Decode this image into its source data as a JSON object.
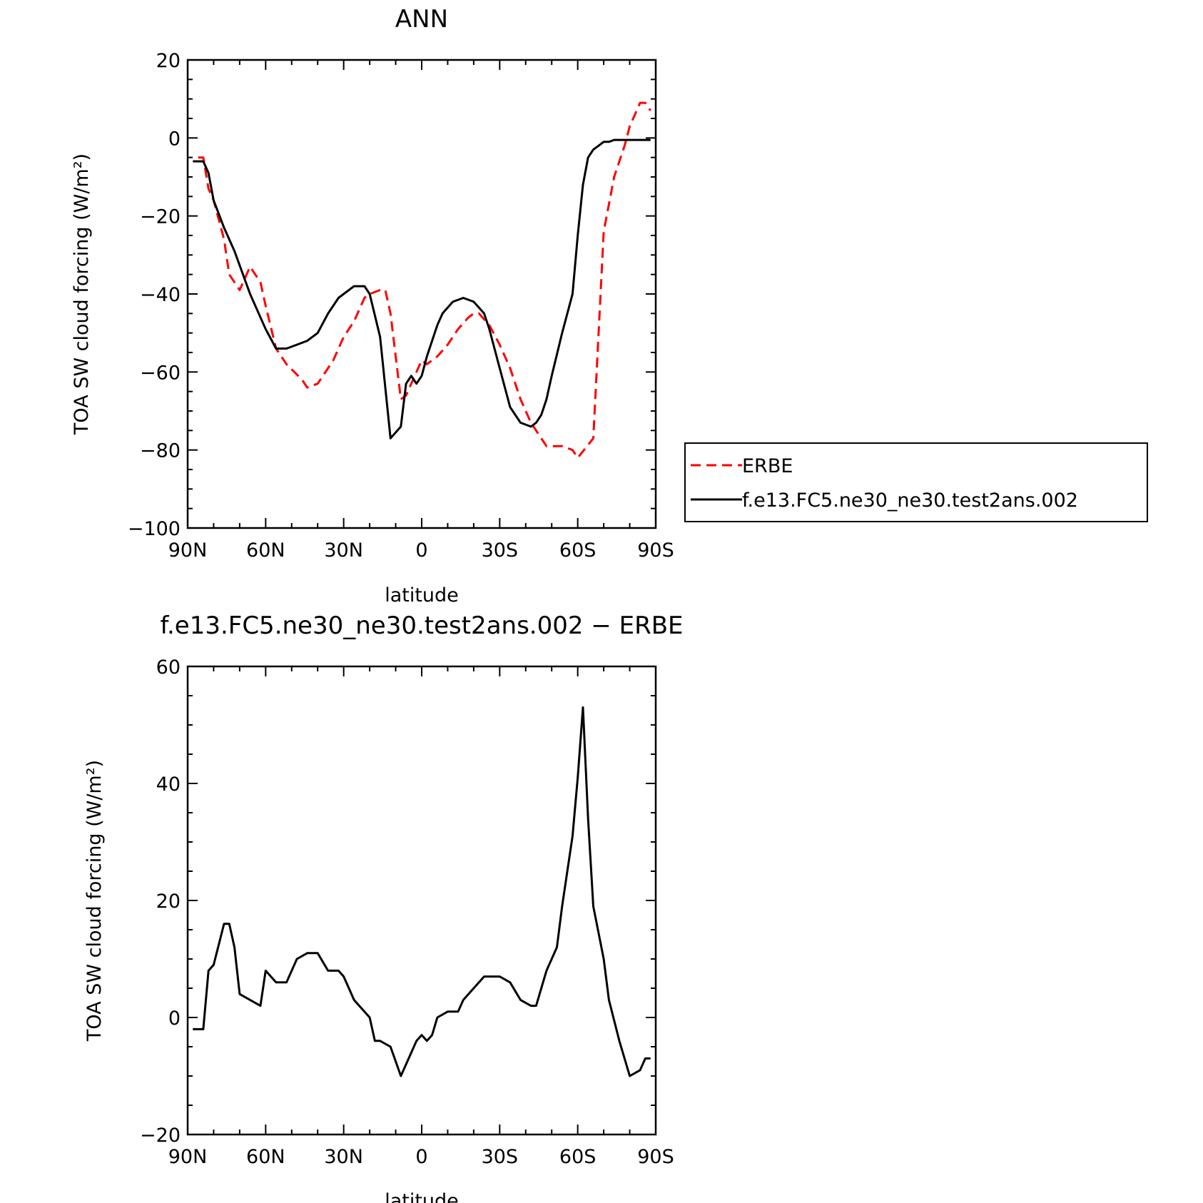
{
  "chart_data": [
    {
      "type": "line",
      "title": "ANN",
      "xlabel": "latitude",
      "ylabel": "TOA SW cloud forcing (W/m²)",
      "xlim": [
        90,
        -90
      ],
      "ylim": [
        -100,
        20
      ],
      "x_ticks": [
        90,
        60,
        30,
        0,
        -30,
        -60,
        -90
      ],
      "x_tick_labels": [
        "90N",
        "60N",
        "30N",
        "0",
        "30S",
        "60S",
        "90S"
      ],
      "y_ticks": [
        -100,
        -80,
        -60,
        -40,
        -20,
        0,
        20
      ],
      "y_tick_labels": [
        "−100",
        "−80",
        "−60",
        "−40",
        "−20",
        "0",
        "20"
      ],
      "legend_position": "right",
      "series": [
        {
          "name": "ERBE",
          "color": "#ff0000",
          "dash": "dashed",
          "x": [
            86,
            84,
            82,
            80,
            76,
            74,
            72,
            70,
            66,
            62,
            60,
            56,
            52,
            46,
            44,
            40,
            34,
            30,
            26,
            22,
            20,
            16,
            14,
            12,
            8,
            6,
            2,
            0,
            -2,
            -6,
            -10,
            -14,
            -18,
            -20,
            -22,
            -26,
            -30,
            -34,
            -38,
            -42,
            -46,
            -48,
            -50,
            -54,
            -58,
            -60,
            -66,
            -70,
            -74,
            -78,
            -80,
            -84,
            -86,
            -88
          ],
          "y": [
            -5,
            -5,
            -13,
            -16,
            -26,
            -35,
            -37,
            -39,
            -33,
            -37,
            -43,
            -54,
            -58,
            -62,
            -64,
            -63,
            -57,
            -51,
            -47,
            -41,
            -40,
            -39,
            -39,
            -45,
            -67,
            -66,
            -60,
            -57,
            -58,
            -56,
            -53,
            -49,
            -46,
            -45,
            -45,
            -48,
            -53,
            -59,
            -67,
            -73,
            -77,
            -79,
            -79,
            -79,
            -80,
            -82,
            -77,
            -24,
            -10,
            -2,
            3,
            9,
            9,
            7
          ]
        },
        {
          "name": "f.e13.FC5.ne30_ne30.test2ans.002",
          "color": "#000000",
          "dash": "solid",
          "x": [
            88,
            84,
            82,
            80,
            76,
            72,
            66,
            60,
            56,
            52,
            48,
            44,
            40,
            36,
            32,
            30,
            26,
            24,
            22,
            20,
            16,
            12,
            8,
            6,
            4,
            2,
            0,
            -2,
            -4,
            -6,
            -8,
            -12,
            -16,
            -20,
            -24,
            -26,
            -30,
            -34,
            -38,
            -42,
            -44,
            -46,
            -48,
            -50,
            -54,
            -58,
            -60,
            -62,
            -64,
            -66,
            -68,
            -70,
            -72,
            -74,
            -76,
            -80,
            -84,
            -88
          ],
          "y": [
            -6,
            -6,
            -9,
            -16,
            -23,
            -29,
            -40,
            -49,
            -54,
            -54,
            -53,
            -52,
            -50,
            -45,
            -41,
            -40,
            -38,
            -38,
            -38,
            -40,
            -51,
            -77,
            -74,
            -63,
            -61,
            -63,
            -61,
            -56,
            -52,
            -48,
            -45,
            -42,
            -41,
            -42,
            -45,
            -49,
            -59,
            -69,
            -73,
            -74,
            -73,
            -71,
            -67,
            -61,
            -50,
            -40,
            -25,
            -12,
            -5,
            -3,
            -2,
            -1,
            -1,
            -0.5,
            -0.5,
            -0.5,
            -0.5,
            -0.5
          ]
        }
      ]
    },
    {
      "type": "line",
      "title": "f.e13.FC5.ne30_ne30.test2ans.002 − ERBE",
      "xlabel": "latitude",
      "ylabel": "TOA SW cloud forcing (W/m²)",
      "xlim": [
        90,
        -90
      ],
      "ylim": [
        -20,
        60
      ],
      "x_ticks": [
        90,
        60,
        30,
        0,
        -30,
        -60,
        -90
      ],
      "x_tick_labels": [
        "90N",
        "60N",
        "30N",
        "0",
        "30S",
        "60S",
        "90S"
      ],
      "y_ticks": [
        -20,
        0,
        20,
        40,
        60
      ],
      "y_tick_labels": [
        "−20",
        "0",
        "20",
        "40",
        "60"
      ],
      "series": [
        {
          "color": "#000000",
          "dash": "solid",
          "x": [
            88,
            84,
            82,
            80,
            76,
            74,
            72,
            70,
            66,
            62,
            60,
            56,
            52,
            48,
            44,
            40,
            36,
            32,
            30,
            26,
            24,
            20,
            18,
            16,
            12,
            8,
            6,
            2,
            0,
            -2,
            -4,
            -6,
            -10,
            -14,
            -16,
            -20,
            -24,
            -26,
            -30,
            -34,
            -38,
            -42,
            -44,
            -48,
            -52,
            -54,
            -58,
            -60,
            -62,
            -64,
            -66,
            -70,
            -72,
            -76,
            -80,
            -84,
            -86,
            -88
          ],
          "y": [
            -2,
            -2,
            8,
            9,
            16,
            16,
            12,
            4,
            3,
            2,
            8,
            6,
            6,
            10,
            11,
            11,
            8,
            8,
            7,
            3,
            2,
            0,
            -4,
            -4,
            -5,
            -10,
            -8,
            -4,
            -3,
            -4,
            -3,
            0,
            1,
            1,
            3,
            5,
            7,
            7,
            7,
            6,
            3,
            2,
            2,
            8,
            12,
            19,
            31,
            41,
            53,
            34,
            19,
            10,
            3,
            -4,
            -10,
            -9,
            -7,
            -7
          ]
        }
      ]
    }
  ]
}
